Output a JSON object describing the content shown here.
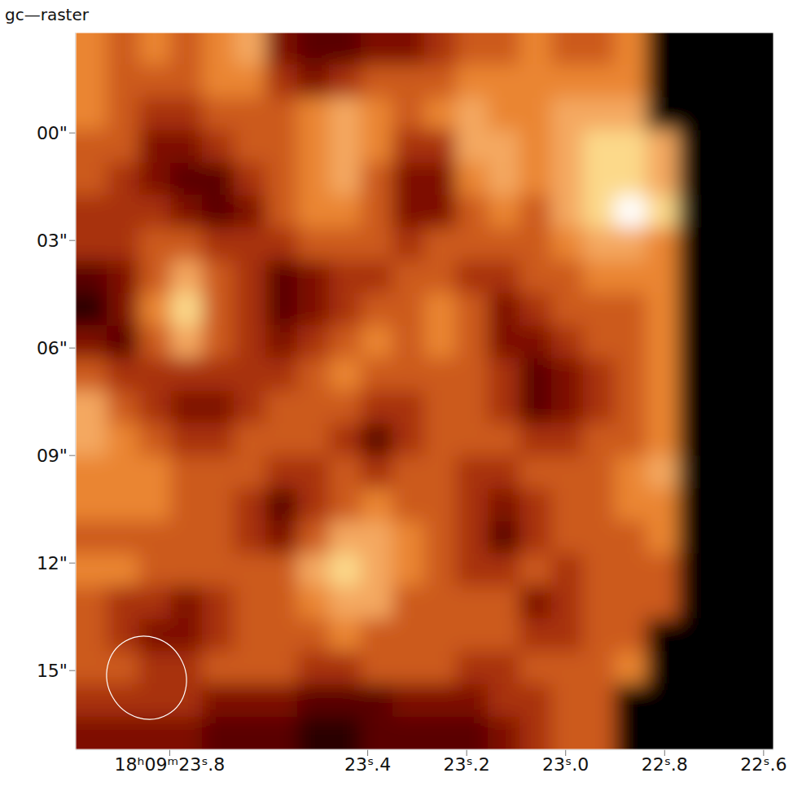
{
  "chart_data": {
    "type": "heatmap",
    "title": "gc—raster",
    "xlim": [
      23.99,
      22.58
    ],
    "xticks": [
      {
        "value": 23.8,
        "label": "18ʰ09ᵐ23ˢ.8"
      },
      {
        "value": 23.4,
        "label": "23ˢ.4"
      },
      {
        "value": 23.2,
        "label": "23ˢ.2"
      },
      {
        "value": 23.0,
        "label": "23ˢ.0"
      },
      {
        "value": 22.8,
        "label": "22ˢ.8"
      },
      {
        "value": 22.6,
        "label": "22ˢ.6"
      }
    ],
    "ylim": [
      17.2,
      -2.8
    ],
    "yticks": [
      {
        "value": 0,
        "label": "00\""
      },
      {
        "value": 3,
        "label": "03\""
      },
      {
        "value": 6,
        "label": "06\""
      },
      {
        "value": 9,
        "label": "09\""
      },
      {
        "value": 12,
        "label": "12\""
      },
      {
        "value": 15,
        "label": "15\""
      }
    ],
    "cells": [
      [
        5,
        4,
        5,
        4,
        5,
        6,
        2,
        1,
        1,
        2,
        2,
        3,
        4,
        4,
        5,
        4,
        4,
        5,
        null,
        null,
        null,
        null
      ],
      [
        5,
        4,
        4,
        4,
        5,
        5,
        3,
        2,
        3,
        4,
        4,
        4,
        5,
        5,
        5,
        5,
        5,
        5,
        null,
        null,
        null,
        null
      ],
      [
        5,
        4,
        3,
        3,
        4,
        4,
        4,
        5,
        6,
        5,
        4,
        5,
        6,
        5,
        5,
        6,
        6,
        6,
        null,
        null,
        null,
        null
      ],
      [
        4,
        4,
        2,
        2,
        3,
        4,
        4,
        5,
        6,
        5,
        3,
        3,
        6,
        6,
        5,
        6,
        7,
        7,
        6,
        null,
        null,
        null
      ],
      [
        4,
        3,
        2,
        1,
        1,
        3,
        4,
        5,
        6,
        4,
        2,
        2,
        5,
        6,
        5,
        6,
        7,
        7,
        6,
        null,
        null,
        null
      ],
      [
        3,
        3,
        3,
        2,
        1,
        2,
        4,
        5,
        5,
        4,
        2,
        2,
        4,
        5,
        4,
        6,
        7,
        8,
        7,
        null,
        null,
        null
      ],
      [
        3,
        3,
        4,
        4,
        3,
        3,
        3,
        4,
        4,
        4,
        3,
        4,
        4,
        4,
        4,
        5,
        6,
        6,
        5,
        null,
        null,
        null
      ],
      [
        1,
        2,
        4,
        6,
        4,
        3,
        1,
        2,
        3,
        3,
        4,
        4,
        3,
        3,
        4,
        4,
        5,
        5,
        5,
        null,
        null,
        null
      ],
      [
        0,
        2,
        5,
        7,
        4,
        3,
        1,
        2,
        3,
        4,
        4,
        5,
        4,
        2,
        3,
        4,
        4,
        4,
        5,
        null,
        null,
        null
      ],
      [
        2,
        1,
        4,
        6,
        4,
        3,
        2,
        3,
        4,
        5,
        4,
        5,
        4,
        2,
        2,
        3,
        4,
        4,
        5,
        null,
        null,
        null
      ],
      [
        4,
        3,
        3,
        3,
        3,
        3,
        3,
        4,
        5,
        4,
        4,
        4,
        4,
        3,
        1,
        2,
        3,
        4,
        5,
        null,
        null,
        null
      ],
      [
        6,
        4,
        3,
        2,
        2,
        3,
        4,
        4,
        4,
        3,
        3,
        4,
        4,
        3,
        1,
        2,
        3,
        4,
        5,
        null,
        null,
        null
      ],
      [
        6,
        5,
        4,
        3,
        3,
        4,
        4,
        4,
        3,
        1,
        3,
        4,
        4,
        4,
        3,
        3,
        4,
        4,
        5,
        null,
        null,
        null
      ],
      [
        5,
        5,
        5,
        4,
        4,
        4,
        3,
        3,
        4,
        3,
        4,
        4,
        3,
        3,
        4,
        4,
        4,
        5,
        6,
        null,
        null,
        null
      ],
      [
        5,
        5,
        5,
        4,
        4,
        3,
        1,
        3,
        4,
        5,
        4,
        4,
        3,
        2,
        3,
        4,
        4,
        5,
        5,
        null,
        null,
        null
      ],
      [
        4,
        4,
        4,
        4,
        4,
        3,
        2,
        4,
        6,
        6,
        5,
        4,
        3,
        1,
        3,
        4,
        4,
        4,
        5,
        null,
        null,
        null
      ],
      [
        5,
        5,
        4,
        4,
        4,
        4,
        4,
        6,
        7,
        6,
        5,
        4,
        3,
        3,
        4,
        3,
        4,
        4,
        4,
        null,
        null,
        null
      ],
      [
        4,
        3,
        3,
        2,
        3,
        4,
        4,
        5,
        6,
        6,
        4,
        4,
        4,
        4,
        2,
        3,
        4,
        4,
        4,
        null,
        null,
        null
      ],
      [
        4,
        3,
        2,
        2,
        3,
        4,
        4,
        4,
        5,
        4,
        4,
        4,
        4,
        4,
        3,
        3,
        4,
        4,
        null,
        null,
        null,
        null
      ],
      [
        4,
        4,
        3,
        3,
        4,
        4,
        4,
        3,
        3,
        4,
        4,
        4,
        3,
        3,
        4,
        4,
        4,
        5,
        null,
        null,
        null,
        null
      ],
      [
        3,
        3,
        3,
        3,
        2,
        2,
        2,
        1,
        1,
        1,
        2,
        2,
        2,
        3,
        3,
        4,
        4,
        null,
        null,
        null,
        null,
        null
      ],
      [
        2,
        2,
        2,
        2,
        1,
        1,
        1,
        0,
        0,
        1,
        1,
        1,
        1,
        2,
        3,
        4,
        4,
        null,
        null,
        null,
        null,
        null
      ]
    ]
  }
}
